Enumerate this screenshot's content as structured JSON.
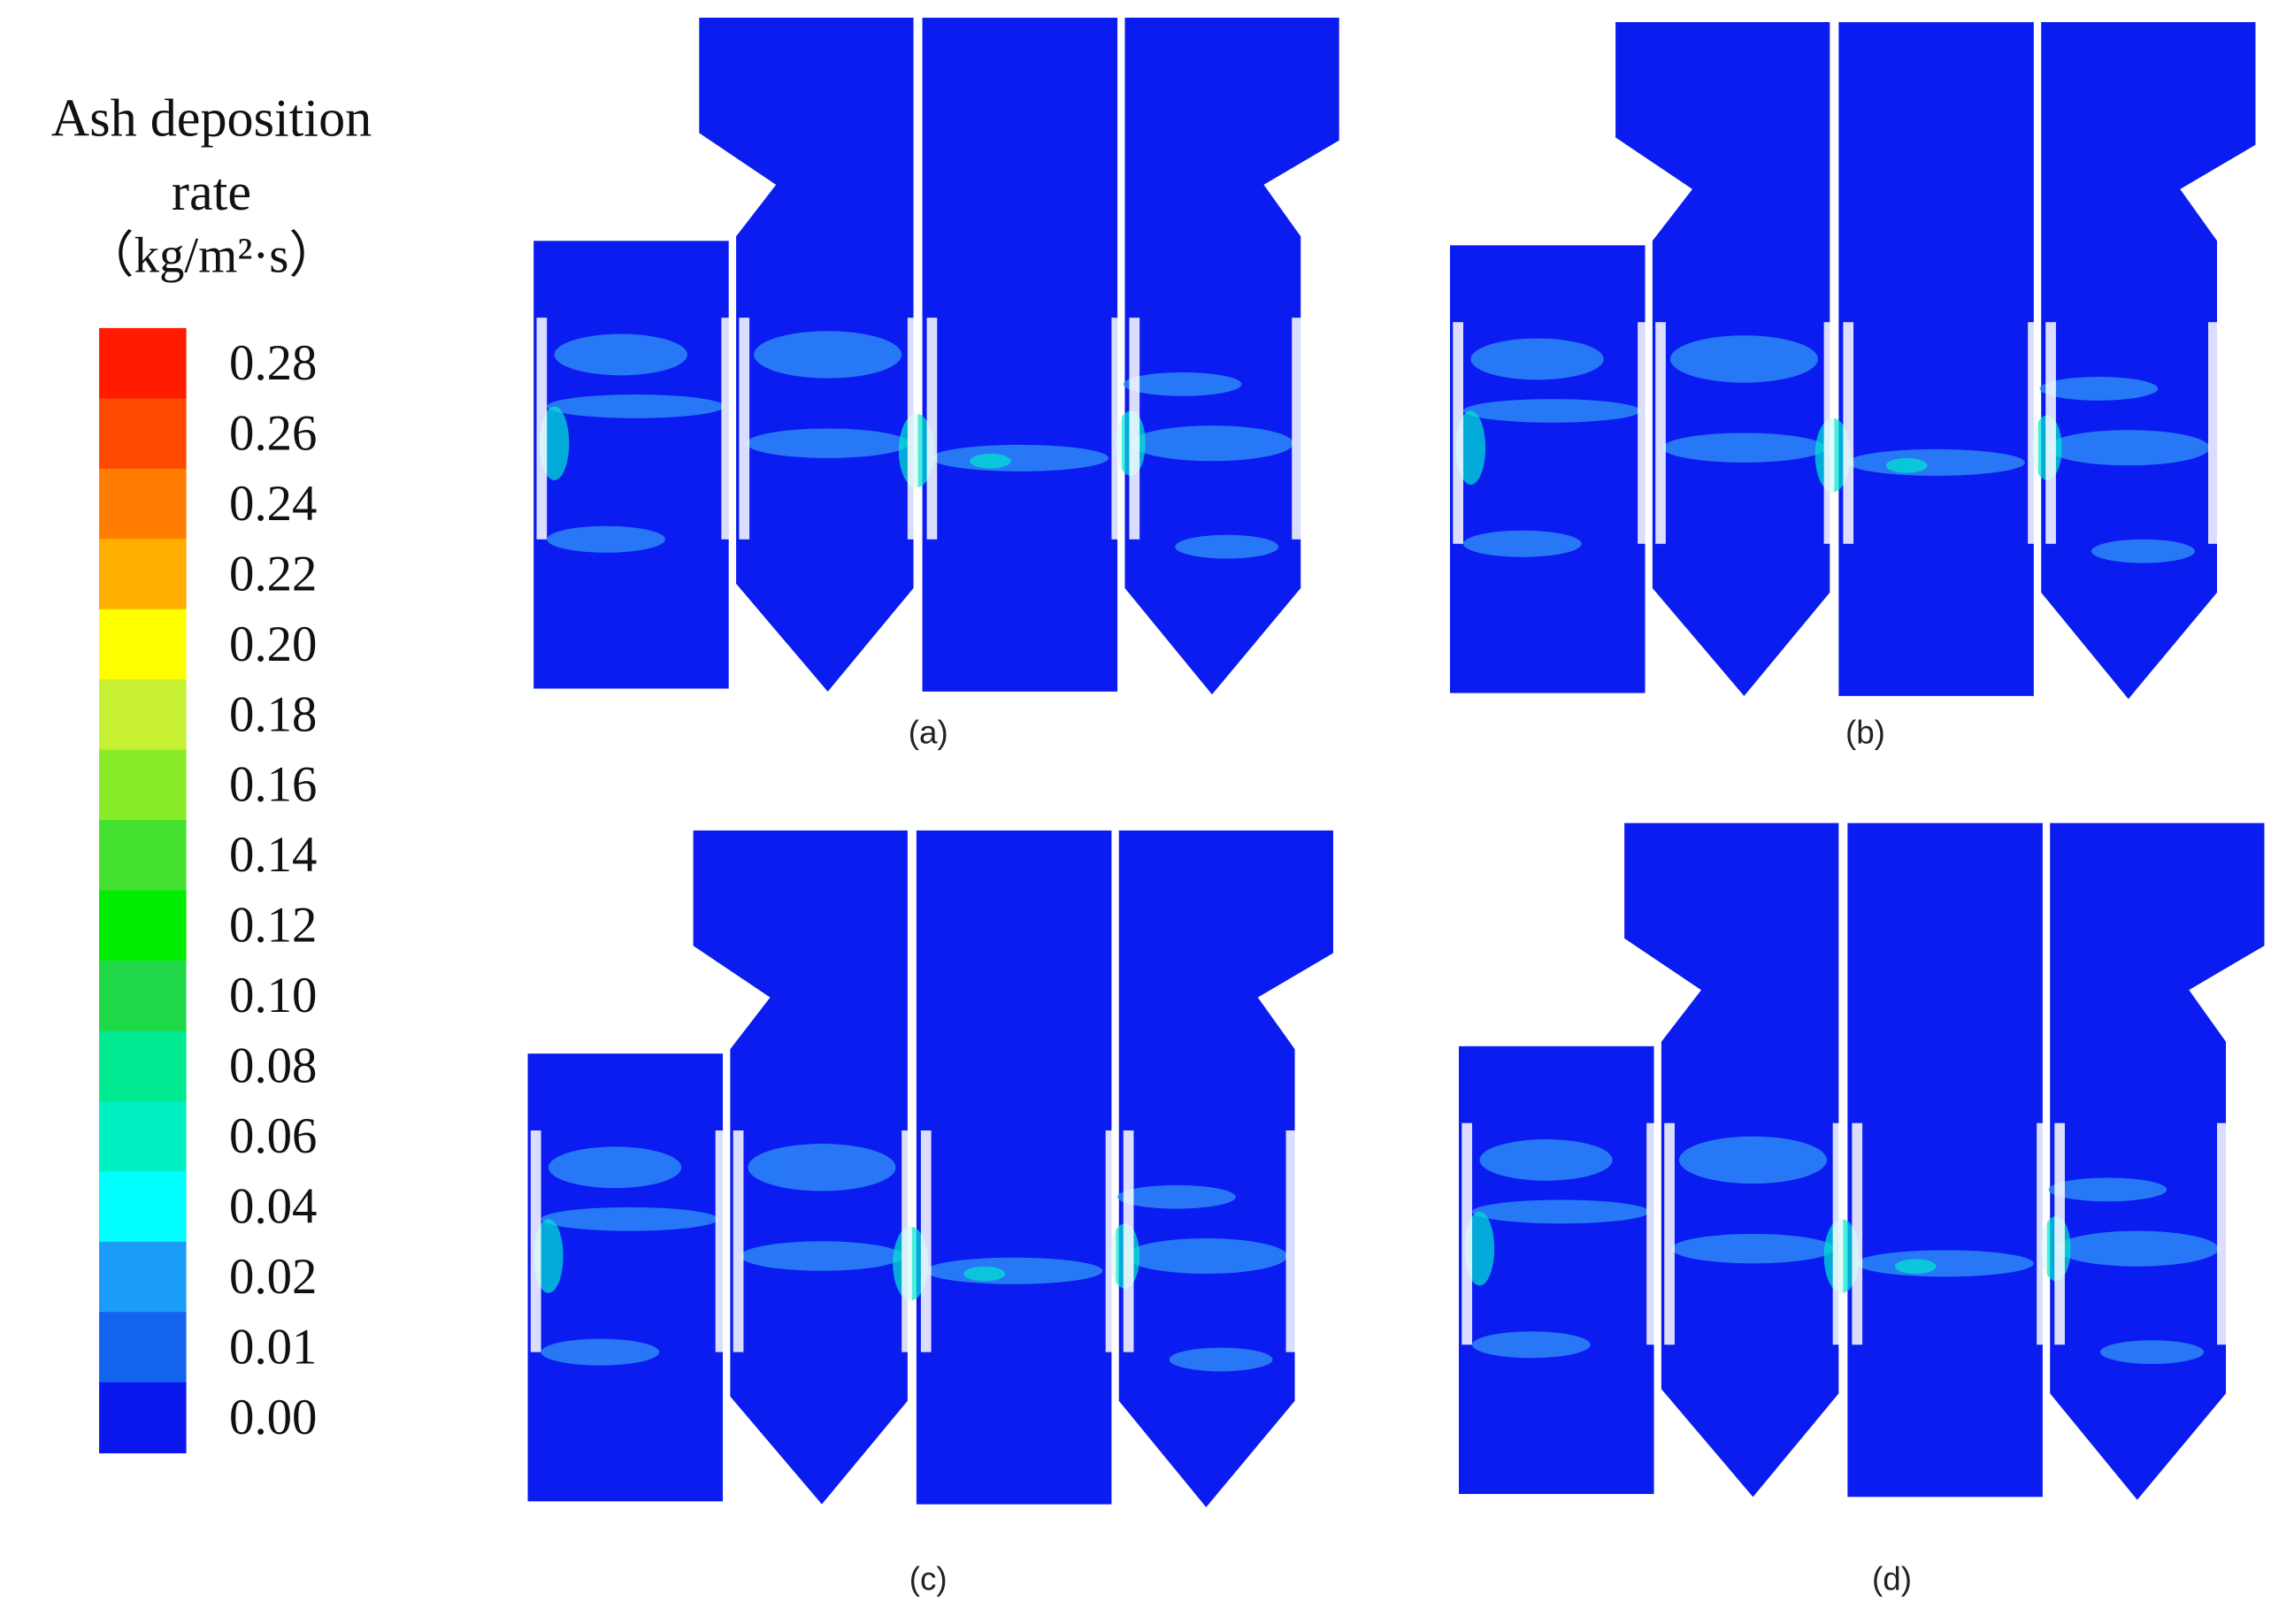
{
  "colorbar": {
    "title": [
      "Ash deposition",
      "rate",
      "（kg/m²·s）"
    ],
    "labels": [
      "0.28",
      "0.26",
      "0.24",
      "0.22",
      "0.20",
      "0.18",
      "0.16",
      "0.14",
      "0.12",
      "0.10",
      "0.08",
      "0.06",
      "0.04",
      "0.02",
      "0.01",
      "0.00"
    ],
    "colors": [
      "#ff1a00",
      "#ff4800",
      "#ff7c00",
      "#ffae00",
      "#ffff00",
      "#c8f032",
      "#88ec28",
      "#44e030",
      "#00ec00",
      "#20d848",
      "#00e890",
      "#00f0c4",
      "#00ffff",
      "#1a9cf8",
      "#1464f0",
      "#0a18ee"
    ]
  },
  "panels": [
    {
      "label": "(a)"
    },
    {
      "label": "(b)"
    },
    {
      "label": "(c)"
    },
    {
      "label": "(d)"
    }
  ]
}
